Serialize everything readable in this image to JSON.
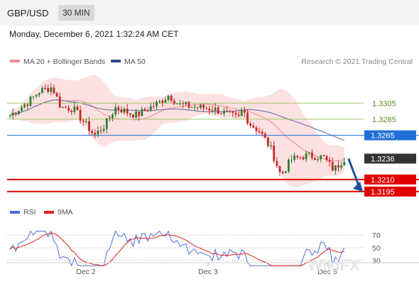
{
  "header": {
    "pair": "GBP/USD",
    "timeframe": "30 MIN",
    "timestamp": "Monday, December 6, 2021 1:32:24 AM CET"
  },
  "legend": {
    "items": [
      {
        "label": "MA 20 + Bollinger Bands",
        "color": "#f08c8c"
      },
      {
        "label": "MA 50",
        "color": "#2f4f8f"
      }
    ],
    "credit": "Research © 2021 Trading Central"
  },
  "rsi_legend": {
    "items": [
      {
        "label": "RSI",
        "color": "#4f6fd8"
      },
      {
        "label": "9MA",
        "color": "#e0201e"
      }
    ]
  },
  "watermark": "WikiFX",
  "colors": {
    "candle_up": "#2e7d32",
    "candle_down": "#c62828",
    "bb_fill": "#fbdcdc",
    "ma20": "#f08c8c",
    "ma50": "#5a6aa8",
    "resistance": "#9ccc65",
    "pivot": "#1f6fd8",
    "support": "#e00000",
    "current": "#333333",
    "arrow": "#1f4f9a",
    "rsi": "#4f6fd8",
    "rsi_ma": "#e0201e"
  },
  "chart_data": [
    {
      "type": "candlestick",
      "title": "GBP/USD 30 MIN",
      "x_ticks": [
        "Dec 2",
        "Dec 3",
        "Dec 5"
      ],
      "ylim": [
        1.3186,
        1.3345
      ],
      "y_range_approx": [
        1.3195,
        1.3325
      ],
      "n_candles": 115,
      "series": [
        {
          "name": "MA 20 + Bollinger Bands",
          "style": "band"
        },
        {
          "name": "MA 50",
          "style": "line"
        }
      ],
      "levels": [
        {
          "value": 1.3305,
          "label": "1.3305",
          "kind": "resistance"
        },
        {
          "value": 1.3285,
          "label": "1.3285",
          "kind": "resistance"
        },
        {
          "value": 1.3265,
          "label": "1.3265",
          "kind": "pivot"
        },
        {
          "value": 1.3236,
          "label": "1.3236",
          "kind": "current"
        },
        {
          "value": 1.321,
          "label": "1.3210",
          "kind": "support"
        },
        {
          "value": 1.3195,
          "label": "1.3195",
          "kind": "support"
        }
      ],
      "outlook": "down"
    },
    {
      "type": "line",
      "title": "RSI",
      "ylim": [
        20,
        80
      ],
      "y_ticks": [
        70,
        50,
        30
      ],
      "series": [
        {
          "name": "RSI"
        },
        {
          "name": "9MA"
        }
      ]
    }
  ]
}
